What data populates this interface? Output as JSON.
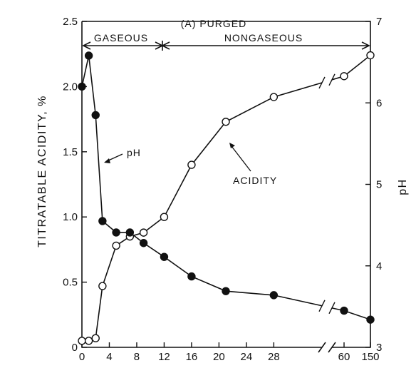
{
  "chart_data": {
    "type": "line",
    "title": "(A) PURGED",
    "xlabel": "",
    "y_left_label": "TITRATABLE ACIDITY, %",
    "y_right_label": "pH",
    "x_ticks": [
      "0",
      "4",
      "8",
      "12",
      "16",
      "20",
      "24",
      "28",
      "60",
      "150"
    ],
    "y_left_ticks": [
      "0",
      "0.5",
      "1.0",
      "1.5",
      "2.0",
      "2.5"
    ],
    "y_right_ticks": [
      "3",
      "4",
      "5",
      "6",
      "7"
    ],
    "ylim_left": [
      0,
      2.5
    ],
    "ylim_right": [
      3,
      7
    ],
    "axis_break": "between 28 and 60",
    "phases": [
      {
        "label": "GASEOUS",
        "x_start": 0,
        "x_end": 9
      },
      {
        "label": "NONGASEOUS",
        "x_start": 9,
        "x_end": 150
      }
    ],
    "series": [
      {
        "name": "ACIDITY",
        "axis": "left",
        "marker": "open-circle",
        "x": [
          0,
          1,
          2,
          3,
          5,
          7,
          9,
          12,
          16,
          21,
          28,
          60,
          150
        ],
        "values": [
          0.05,
          0.05,
          0.07,
          0.47,
          0.78,
          0.85,
          0.88,
          1.0,
          1.4,
          1.73,
          1.92,
          2.08,
          2.24
        ]
      },
      {
        "name": "pH",
        "axis": "right",
        "marker": "filled-circle",
        "x": [
          0,
          1,
          2,
          3,
          5,
          7,
          9,
          12,
          16,
          21,
          28,
          60,
          150
        ],
        "values": [
          6.2,
          6.58,
          5.85,
          4.55,
          4.41,
          4.41,
          4.28,
          4.11,
          3.87,
          3.69,
          3.64,
          3.45,
          3.34
        ]
      }
    ],
    "annotations": [
      {
        "text": "pH",
        "target": "pH"
      },
      {
        "text": "ACIDITY",
        "target": "ACIDITY"
      }
    ],
    "grid": false
  }
}
